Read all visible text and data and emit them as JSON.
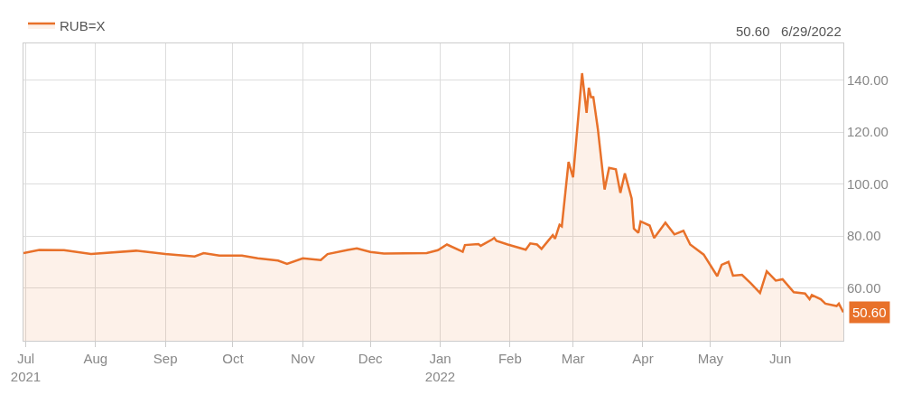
{
  "chart_data": {
    "type": "area",
    "series": [
      {
        "name": "RUB=X",
        "color": "#e8712a",
        "x": [
          "2021-06-30",
          "2021-07-07",
          "2021-07-18",
          "2021-07-30",
          "2021-08-19",
          "2021-09-01",
          "2021-09-14",
          "2021-09-18",
          "2021-09-25",
          "2021-10-05",
          "2021-10-12",
          "2021-10-21",
          "2021-10-25",
          "2021-11-01",
          "2021-11-09",
          "2021-11-12",
          "2021-11-21",
          "2021-11-25",
          "2021-12-01",
          "2021-12-07",
          "2021-12-26",
          "2021-12-31",
          "2022-01-04",
          "2022-01-11",
          "2022-01-12",
          "2022-01-18",
          "2022-01-19",
          "2022-01-24",
          "2022-01-25",
          "2022-01-26",
          "2022-01-31",
          "2022-02-08",
          "2022-02-10",
          "2022-02-13",
          "2022-02-15",
          "2022-02-20",
          "2022-02-21",
          "2022-02-23",
          "2022-02-24",
          "2022-02-27",
          "2022-03-01",
          "2022-03-05",
          "2022-03-07",
          "2022-03-08",
          "2022-03-09",
          "2022-03-10",
          "2022-03-12",
          "2022-03-15",
          "2022-03-17",
          "2022-03-20",
          "2022-03-22",
          "2022-03-24",
          "2022-03-27",
          "2022-03-28",
          "2022-03-30",
          "2022-03-31",
          "2022-04-04",
          "2022-04-06",
          "2022-04-11",
          "2022-04-15",
          "2022-04-19",
          "2022-04-22",
          "2022-04-28",
          "2022-05-04",
          "2022-05-06",
          "2022-05-09",
          "2022-05-11",
          "2022-05-15",
          "2022-05-19",
          "2022-05-23",
          "2022-05-26",
          "2022-05-30",
          "2022-06-02",
          "2022-06-07",
          "2022-06-12",
          "2022-06-14",
          "2022-06-15",
          "2022-06-19",
          "2022-06-21",
          "2022-06-26",
          "2022-06-27",
          "2022-06-29"
        ],
        "values": [
          73.4,
          74.6,
          74.5,
          73.0,
          74.3,
          73.0,
          72.1,
          73.4,
          72.4,
          72.4,
          71.4,
          70.5,
          69.2,
          71.4,
          70.7,
          73.0,
          74.6,
          75.2,
          73.8,
          73.2,
          73.4,
          74.5,
          76.7,
          73.9,
          76.5,
          76.9,
          76.2,
          78.6,
          79.2,
          78.1,
          76.7,
          74.7,
          77.1,
          76.7,
          75.0,
          80.3,
          78.9,
          84.3,
          83.7,
          108.5,
          102.6,
          142.7,
          127.4,
          137.1,
          133.5,
          133.5,
          121.3,
          97.9,
          106.2,
          105.7,
          96.6,
          104.1,
          94.5,
          82.8,
          81.2,
          85.6,
          84.0,
          79.2,
          85.1,
          80.6,
          82.0,
          76.7,
          72.8,
          64.5,
          68.9,
          70.0,
          64.7,
          65.0,
          61.7,
          58.0,
          66.4,
          62.8,
          63.3,
          58.3,
          57.8,
          55.6,
          57.2,
          55.6,
          53.9,
          53.0,
          53.9,
          50.6
        ]
      }
    ],
    "xlim": [
      "2021-06-30",
      "2022-06-29"
    ],
    "xticks": [
      {
        "value": "2021-07-01",
        "label": "Jul\n2021"
      },
      {
        "value": "2021-08-01",
        "label": "Aug"
      },
      {
        "value": "2021-09-01",
        "label": "Sep"
      },
      {
        "value": "2021-10-01",
        "label": "Oct"
      },
      {
        "value": "2021-11-01",
        "label": "Nov"
      },
      {
        "value": "2021-12-01",
        "label": "Dec"
      },
      {
        "value": "2022-01-01",
        "label": "Jan\n2022"
      },
      {
        "value": "2022-02-01",
        "label": "Feb"
      },
      {
        "value": "2022-03-01",
        "label": "Mar"
      },
      {
        "value": "2022-04-01",
        "label": "Apr"
      },
      {
        "value": "2022-05-01",
        "label": "May"
      },
      {
        "value": "2022-06-01",
        "label": "Jun"
      }
    ],
    "ylim": [
      39.6,
      154.2
    ],
    "yticks": [
      {
        "value": 60,
        "label": "60.00"
      },
      {
        "value": 80,
        "label": "80.00"
      },
      {
        "value": 100,
        "label": "100.00"
      },
      {
        "value": 120,
        "label": "120.00"
      },
      {
        "value": 140,
        "label": "140.00"
      }
    ],
    "annotations": [
      "50.60   6/29/2022",
      {
        "text": "50.60",
        "x": "2022-06-29",
        "y": 50.6
      }
    ],
    "grid": true,
    "legend": "top left",
    "marker": "none"
  }
}
